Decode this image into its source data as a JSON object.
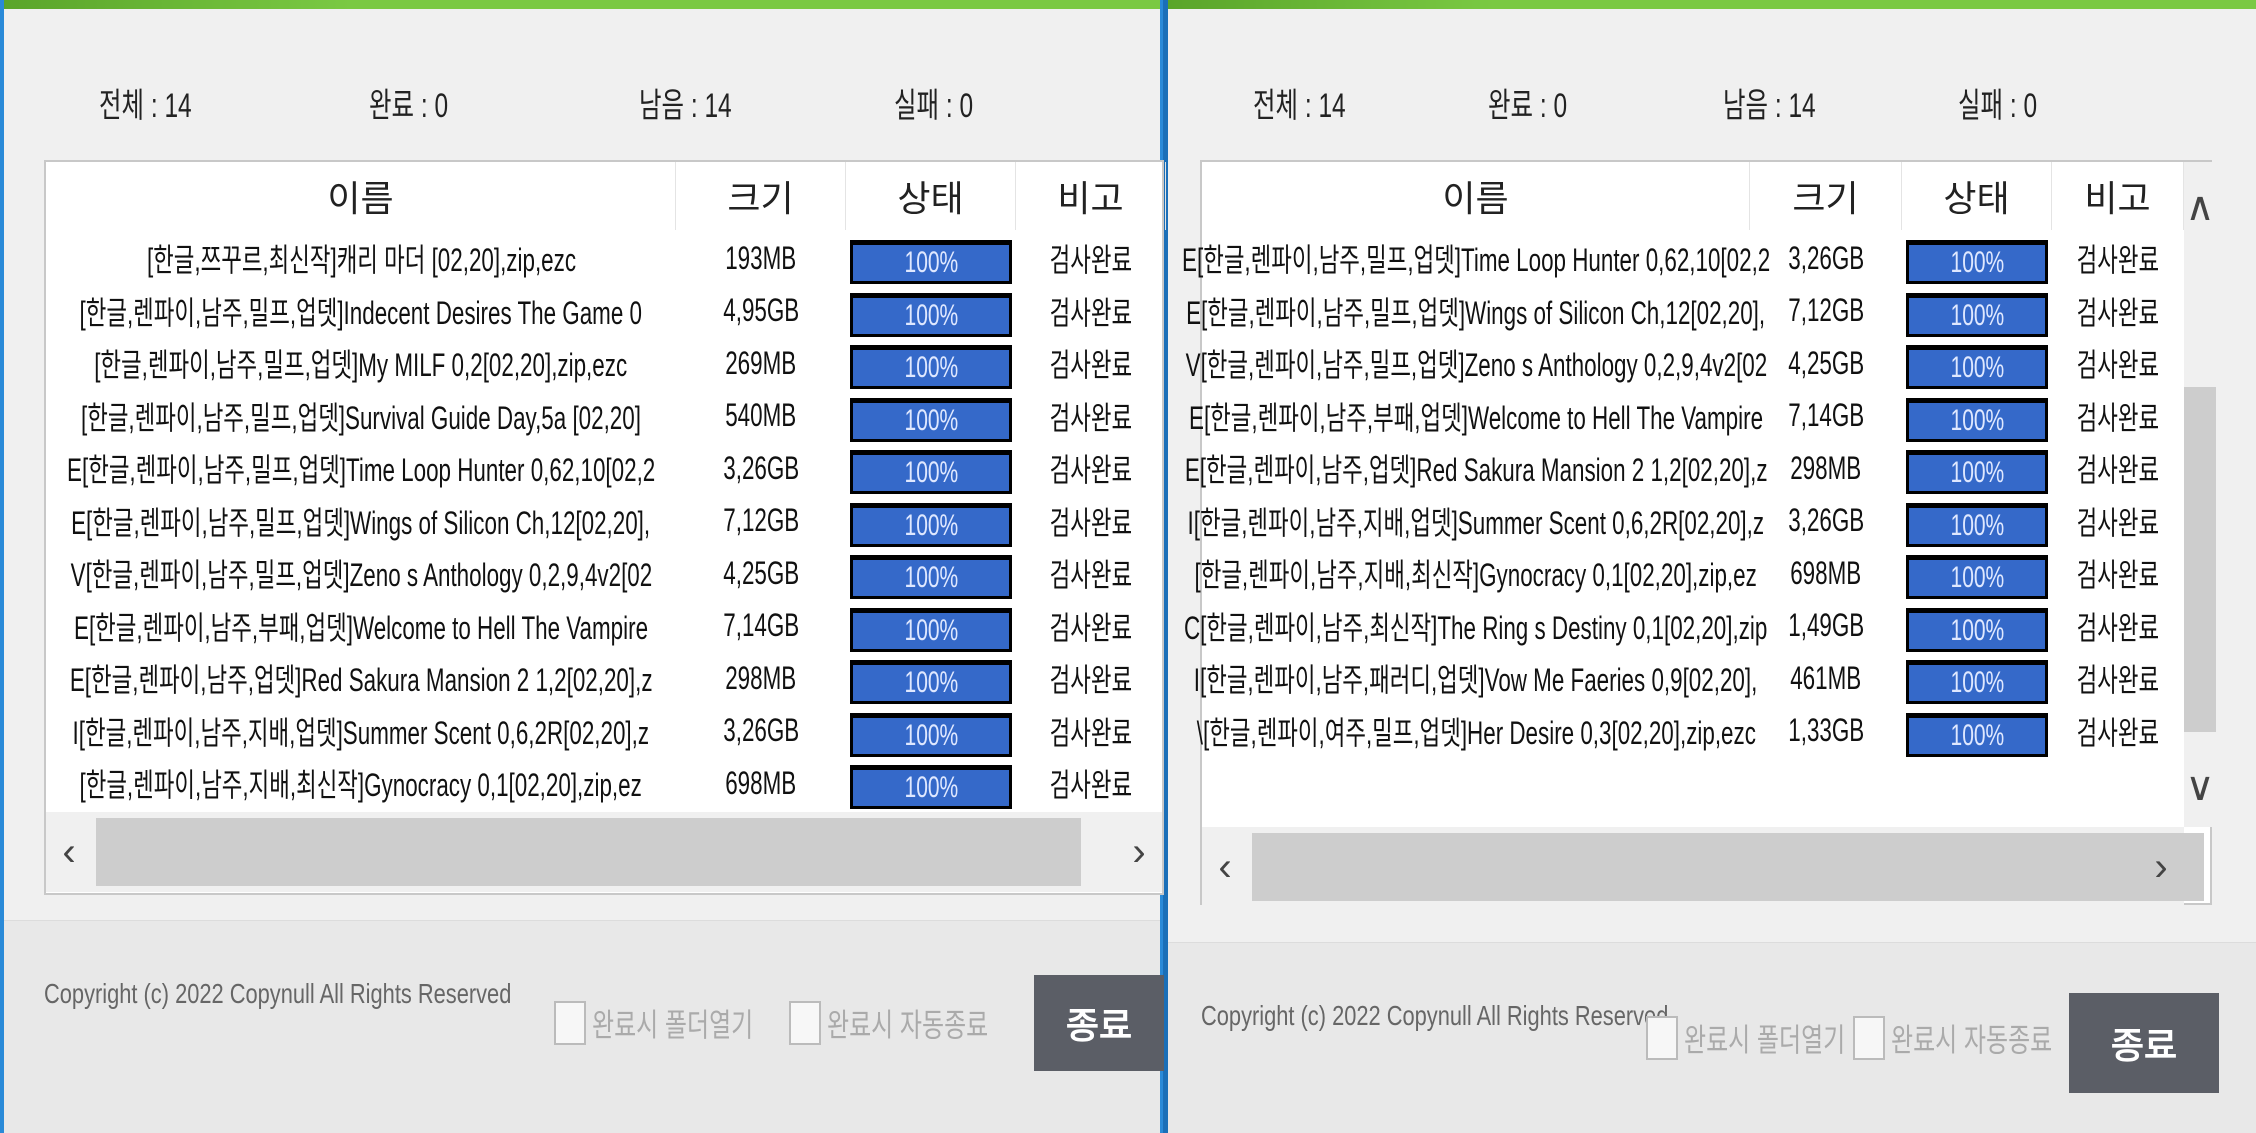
{
  "stats": {
    "total": "전체 : 14",
    "done": "완료 : 0",
    "remaining": "남음 : 14",
    "failed": "실패 : 0"
  },
  "columns": {
    "name": "이름",
    "size": "크기",
    "status": "상태",
    "note": "비고"
  },
  "files": [
    {
      "name": "[한글,쯔꾸르,최신작]캐리 마더 [02,20],zip,ezc",
      "size": "193MB",
      "progress": "100%",
      "note": "검사완료"
    },
    {
      "name": "[한글,렌파이,남주,밀프,업뎃]Indecent Desires The Game 0",
      "size": "4,95GB",
      "progress": "100%",
      "note": "검사완료"
    },
    {
      "name": "[한글,렌파이,남주,밀프,업뎃]My MILF 0,2[02,20],zip,ezc",
      "size": "269MB",
      "progress": "100%",
      "note": "검사완료"
    },
    {
      "name": "[한글,렌파이,남주,밀프,업뎃]Survival Guide Day,5a [02,20]",
      "size": "540MB",
      "progress": "100%",
      "note": "검사완료"
    },
    {
      "name": "E[한글,렌파이,남주,밀프,업뎃]Time Loop Hunter 0,62,10[02,2",
      "size": "3,26GB",
      "progress": "100%",
      "note": "검사완료"
    },
    {
      "name": "E[한글,렌파이,남주,밀프,업뎃]Wings of Silicon Ch,12[02,20],",
      "size": "7,12GB",
      "progress": "100%",
      "note": "검사완료"
    },
    {
      "name": "V[한글,렌파이,남주,밀프,업뎃]Zeno s Anthology 0,2,9,4v2[02",
      "size": "4,25GB",
      "progress": "100%",
      "note": "검사완료"
    },
    {
      "name": "E[한글,렌파이,남주,부패,업뎃]Welcome to Hell The Vampire",
      "size": "7,14GB",
      "progress": "100%",
      "note": "검사완료"
    },
    {
      "name": "E[한글,렌파이,남주,업뎃]Red Sakura Mansion 2 1,2[02,20],z",
      "size": "298MB",
      "progress": "100%",
      "note": "검사완료"
    },
    {
      "name": "I[한글,렌파이,남주,지배,업뎃]Summer Scent 0,6,2R[02,20],z",
      "size": "3,26GB",
      "progress": "100%",
      "note": "검사완료"
    },
    {
      "name": "[한글,렌파이,남주,지배,최신작]Gynocracy 0,1[02,20],zip,ez",
      "size": "698MB",
      "progress": "100%",
      "note": "검사완료"
    },
    {
      "name": "C[한글,렌파이,남주,최신작]The Ring s Destiny 0,1[02,20],zip",
      "size": "1,49GB",
      "progress": "100%",
      "note": "검사완료"
    },
    {
      "name": "I[한글,렌파이,남주,패러디,업뎃]Vow Me Faeries 0,9[02,20],",
      "size": "461MB",
      "progress": "100%",
      "note": "검사완료"
    },
    {
      "name": "\\[한글,렌파이,여주,밀프,업뎃]Her Desire 0,3[02,20],zip,ezc",
      "size": "1,33GB",
      "progress": "100%",
      "note": "검사완료"
    }
  ],
  "footer": {
    "copyright": "Copyright (c) 2022 Copynull All Rights Reserved",
    "open_folder": "완료시 폴더열기",
    "auto_exit": "완료시 자동종료",
    "exit_button": "종료"
  },
  "colors": {
    "progress": "#3569c9",
    "accent": "#7ac943",
    "button": "#5b5e66"
  }
}
